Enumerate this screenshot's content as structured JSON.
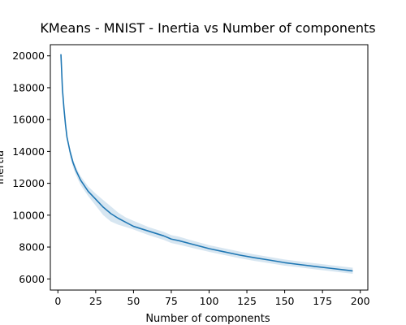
{
  "chart_data": {
    "type": "line",
    "title": "KMeans - MNIST - Inertia vs Number of components",
    "xlabel": "Number of components",
    "ylabel": "Inertia",
    "xlim": [
      -5,
      205
    ],
    "ylim": [
      5300,
      20700
    ],
    "xticks": [
      0,
      25,
      50,
      75,
      100,
      125,
      150,
      175,
      200
    ],
    "yticks": [
      6000,
      8000,
      10000,
      12000,
      14000,
      16000,
      18000,
      20000
    ],
    "grid": false,
    "line_color": "#1f77b4",
    "band_color": "#1f77b4",
    "series": [
      {
        "x": [
          2,
          3,
          4,
          5,
          6,
          8,
          10,
          12,
          15,
          20,
          25,
          30,
          35,
          40,
          45,
          50,
          60,
          70,
          75,
          80,
          90,
          100,
          110,
          120,
          130,
          140,
          150,
          160,
          170,
          180,
          190,
          195
        ],
        "y": [
          20100,
          17900,
          16700,
          15700,
          14900,
          14000,
          13300,
          12800,
          12200,
          11500,
          11000,
          10500,
          10100,
          9800,
          9550,
          9300,
          9000,
          8700,
          8500,
          8400,
          8150,
          7900,
          7700,
          7500,
          7330,
          7180,
          7020,
          6900,
          6780,
          6670,
          6560,
          6500
        ],
        "lower": [
          20100,
          17900,
          16700,
          15700,
          14900,
          13700,
          13000,
          12500,
          11900,
          11200,
          10600,
          10000,
          9600,
          9400,
          9250,
          9100,
          8750,
          8450,
          8250,
          8150,
          7920,
          7700,
          7500,
          7300,
          7130,
          6980,
          6830,
          6720,
          6600,
          6490,
          6380,
          6320
        ],
        "upper": [
          20100,
          17900,
          16700,
          15700,
          14900,
          14200,
          13500,
          13000,
          12450,
          11800,
          11350,
          10950,
          10550,
          10150,
          9850,
          9650,
          9250,
          8950,
          8750,
          8650,
          8380,
          8120,
          7920,
          7720,
          7540,
          7380,
          7220,
          7100,
          6980,
          6870,
          6760,
          6700
        ]
      }
    ]
  }
}
